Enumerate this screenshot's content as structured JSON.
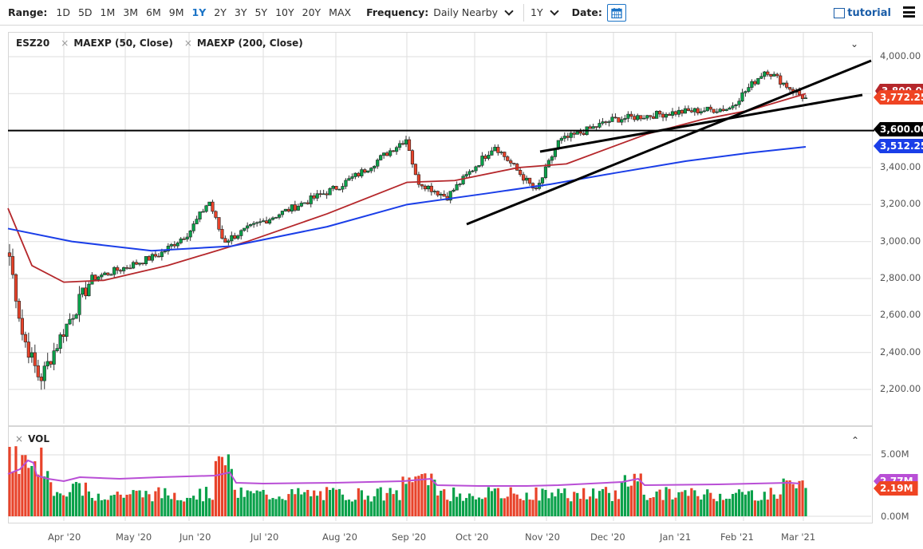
{
  "toolbar": {
    "range_label": "Range:",
    "ranges": [
      "1D",
      "5D",
      "1M",
      "3M",
      "6M",
      "9M",
      "1Y",
      "2Y",
      "3Y",
      "5Y",
      "10Y",
      "20Y",
      "MAX"
    ],
    "active_range": "1Y",
    "frequency_label": "Frequency:",
    "frequency_value": "Daily Nearby",
    "period_value": "1Y",
    "date_label": "Date:",
    "tutorial_label": "tutorial"
  },
  "legend": {
    "symbol": "ESZ20",
    "studies": [
      "MAEXP (50, Close)",
      "MAEXP (200, Close)"
    ]
  },
  "volume_legend": "VOL",
  "colors": {
    "up": "#0aa14a",
    "down": "#e8432a",
    "ma50": "#b5272b",
    "ma200": "#1a3ee8",
    "vol_ma": "#b94fd6",
    "accent": "#1a73c6",
    "grid": "#e3e3e3"
  },
  "badges": {
    "ma50": "3,800.00",
    "last": "3,772.25",
    "hline": "3,600.00",
    "ma200": "3,512.25",
    "vol_ma": "2.77M",
    "vol_last": "2.19M"
  },
  "chart_data": [
    {
      "type": "candlestick",
      "title": "ESZ20",
      "xlabel": "",
      "ylabel": "",
      "ylim": [
        2100,
        4100
      ],
      "y_ticks": [
        "4,000.00",
        "3,800.00",
        "3,600.00",
        "3,400.00",
        "3,200.00",
        "3,000.00",
        "2,800.00",
        "2,600.00",
        "2,400.00",
        "2,200.00"
      ],
      "x_ticks": [
        "Apr '20",
        "May '20",
        "Jun '20",
        "Jul '20",
        "Aug '20",
        "Sep '20",
        "Oct '20",
        "Nov '20",
        "Dec '20",
        "Jan '21",
        "Feb '21",
        "Mar '21"
      ],
      "grid": true,
      "approx_close_path": {
        "dates": [
          "Mar 9 '20",
          "Mar 16 '20",
          "Mar 23 '20",
          "Apr 1 '20",
          "Apr 15 '20",
          "May 1 '20",
          "May 15 '20",
          "Jun 1 '20",
          "Jun 8 '20",
          "Jun 12 '20",
          "Jul 1 '20",
          "Aug 1 '20",
          "Aug 15 '20",
          "Sep 2 '20",
          "Sep 10 '20",
          "Sep 24 '20",
          "Oct 12 '20",
          "Oct 30 '20",
          "Nov 10 '20",
          "Dec 1 '20",
          "Jan 4 '21",
          "Jan 29 '21",
          "Feb 12 '21",
          "Feb 25 '21",
          "Mar 4 '21"
        ],
        "close": [
          2920,
          2500,
          2250,
          2520,
          2800,
          2860,
          2930,
          3050,
          3220,
          3000,
          3110,
          3290,
          3380,
          3560,
          3330,
          3240,
          3520,
          3270,
          3540,
          3660,
          3700,
          3720,
          3930,
          3830,
          3772
        ]
      },
      "series": [
        {
          "name": "MAEXP (50, Close)",
          "last": 3800,
          "points": [
            [
              0,
              3180
            ],
            [
              30,
              2870
            ],
            [
              70,
              2780
            ],
            [
              120,
              2790
            ],
            [
              200,
              2870
            ],
            [
              300,
              3000
            ],
            [
              400,
              3150
            ],
            [
              500,
              3320
            ],
            [
              560,
              3330
            ],
            [
              640,
              3400
            ],
            [
              700,
              3420
            ],
            [
              800,
              3580
            ],
            [
              870,
              3660
            ],
            [
              930,
              3710
            ],
            [
              1000,
              3800
            ]
          ]
        },
        {
          "name": "MAEXP (200, Close)",
          "last": 3512.25,
          "points": [
            [
              0,
              3070
            ],
            [
              80,
              3000
            ],
            [
              180,
              2950
            ],
            [
              280,
              2975
            ],
            [
              400,
              3080
            ],
            [
              500,
              3200
            ],
            [
              600,
              3260
            ],
            [
              680,
              3310
            ],
            [
              760,
              3370
            ],
            [
              850,
              3435
            ],
            [
              930,
              3480
            ],
            [
              1000,
              3512
            ]
          ]
        },
        {
          "name": "Horizontal line",
          "value": 3600
        },
        {
          "name": "Trendline A",
          "from": [
            "Oct 1 '20",
            3090
          ],
          "to": [
            "Mar 31 '21",
            3960
          ]
        },
        {
          "name": "Trendline B",
          "from": [
            "Nov 2 '20",
            3480
          ],
          "to": [
            "Mar 31 '21",
            3780
          ]
        }
      ]
    },
    {
      "type": "bar",
      "title": "VOL",
      "ylim": [
        0,
        5.5
      ],
      "y_ticks": [
        "5.00M",
        "0.00M"
      ],
      "series": [
        {
          "name": "Volume (M)",
          "note": "daily bars, green=up day, red=down day",
          "peaks": [
            [
              "Mar 16 '20",
              5.9
            ],
            [
              "Jun 11 '20",
              5.4
            ],
            [
              "Sep 8 '20",
              3.8
            ],
            [
              "Dec 18 '20",
              3.6
            ],
            [
              "Mar 1 '21",
              3.0
            ]
          ],
          "last": 2.19
        },
        {
          "name": "Volume MA",
          "last": 2.77
        }
      ]
    }
  ]
}
